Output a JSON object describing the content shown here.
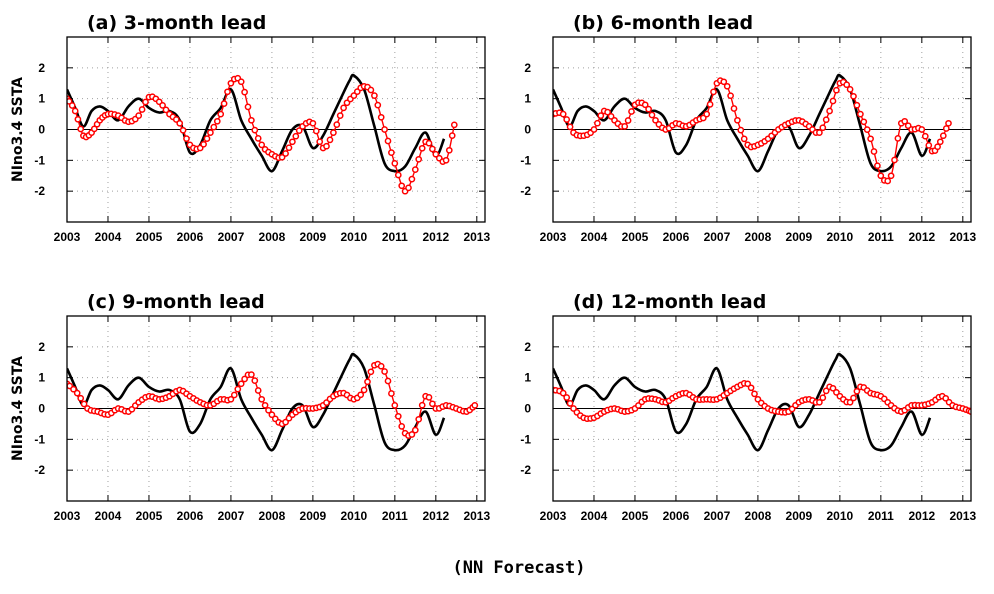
{
  "figure": {
    "footer": "(NN Forecast)"
  },
  "colors": {
    "observed": "#000000",
    "forecast": "#ff0000",
    "grid": "#a0a0a0"
  },
  "chart_data": [
    {
      "type": "line",
      "title": "(a) 3-month lead",
      "ylabel": "NIno3.4 SSTA",
      "xlim": [
        2003,
        2013.2
      ],
      "ylim": [
        -3,
        3
      ],
      "xticks": [
        "2003",
        "2004",
        "2005",
        "2006",
        "2007",
        "2008",
        "2009",
        "2010",
        "2011",
        "2012",
        "2013"
      ],
      "yticks": [
        "2",
        "1",
        "0",
        "-1",
        "-2"
      ],
      "grid": true,
      "series": [
        {
          "style": "observed",
          "x": [
            2003,
            2003.2,
            2003.4,
            2003.6,
            2003.8,
            2004,
            2004.25,
            2004.5,
            2004.75,
            2005,
            2005.25,
            2005.5,
            2005.75,
            2006,
            2006.25,
            2006.5,
            2006.75,
            2007,
            2007.25,
            2007.5,
            2007.75,
            2008,
            2008.25,
            2008.5,
            2008.75,
            2009,
            2009.25,
            2009.5,
            2009.75,
            2009.9,
            2010,
            2010.25,
            2010.5,
            2010.75,
            2011,
            2011.25,
            2011.5,
            2011.75,
            2012,
            2012.2
          ],
          "y": [
            1.3,
            0.7,
            0.1,
            0.6,
            0.75,
            0.6,
            0.3,
            0.75,
            1.0,
            0.7,
            0.55,
            0.6,
            0.3,
            -0.75,
            -0.5,
            0.3,
            0.7,
            1.3,
            0.3,
            -0.3,
            -0.85,
            -1.35,
            -0.7,
            0.0,
            0.1,
            -0.6,
            -0.2,
            0.5,
            1.2,
            1.6,
            1.75,
            1.3,
            0.1,
            -1.1,
            -1.35,
            -1.2,
            -0.6,
            -0.1,
            -0.85,
            -0.3
          ]
        },
        {
          "style": "forecast",
          "x": [
            2003,
            2003.2,
            2003.4,
            2003.6,
            2003.8,
            2004,
            2004.25,
            2004.5,
            2004.75,
            2005,
            2005.25,
            2005.5,
            2005.75,
            2006,
            2006.25,
            2006.5,
            2006.75,
            2007,
            2007.25,
            2007.5,
            2007.75,
            2008,
            2008.25,
            2008.5,
            2008.75,
            2009,
            2009.25,
            2009.5,
            2009.75,
            2010,
            2010.25,
            2010.5,
            2010.75,
            2011,
            2011.25,
            2011.5,
            2011.75,
            2012,
            2012.25,
            2012.45
          ],
          "y": [
            1.0,
            0.6,
            -0.2,
            -0.1,
            0.3,
            0.5,
            0.45,
            0.25,
            0.45,
            1.05,
            0.9,
            0.5,
            0.2,
            -0.5,
            -0.6,
            -0.1,
            0.5,
            1.5,
            1.55,
            0.3,
            -0.5,
            -0.8,
            -0.9,
            -0.4,
            0.1,
            0.2,
            -0.6,
            -0.1,
            0.7,
            1.1,
            1.4,
            1.1,
            0.0,
            -1.1,
            -2.0,
            -1.3,
            -0.4,
            -0.8,
            -1.0,
            0.15
          ]
        }
      ]
    },
    {
      "type": "line",
      "title": "(b) 6-month lead",
      "ylabel": "",
      "xlim": [
        2003,
        2013.2
      ],
      "ylim": [
        -3,
        3
      ],
      "xticks": [
        "2003",
        "2004",
        "2005",
        "2006",
        "2007",
        "2008",
        "2009",
        "2010",
        "2011",
        "2012",
        "2013"
      ],
      "yticks": [
        "2",
        "1",
        "0",
        "-1",
        "-2"
      ],
      "grid": true,
      "series": [
        {
          "style": "observed",
          "x": [
            2003,
            2003.2,
            2003.4,
            2003.6,
            2003.8,
            2004,
            2004.25,
            2004.5,
            2004.75,
            2005,
            2005.25,
            2005.5,
            2005.75,
            2006,
            2006.25,
            2006.5,
            2006.75,
            2007,
            2007.25,
            2007.5,
            2007.75,
            2008,
            2008.25,
            2008.5,
            2008.75,
            2009,
            2009.25,
            2009.5,
            2009.75,
            2009.9,
            2010,
            2010.25,
            2010.5,
            2010.75,
            2011,
            2011.25,
            2011.5,
            2011.75,
            2012,
            2012.2
          ],
          "y": [
            1.3,
            0.7,
            0.1,
            0.6,
            0.75,
            0.6,
            0.3,
            0.75,
            1.0,
            0.7,
            0.55,
            0.6,
            0.3,
            -0.75,
            -0.5,
            0.3,
            0.7,
            1.3,
            0.3,
            -0.3,
            -0.85,
            -1.35,
            -0.7,
            0.0,
            0.1,
            -0.6,
            -0.2,
            0.5,
            1.2,
            1.6,
            1.75,
            1.3,
            0.1,
            -1.1,
            -1.35,
            -1.2,
            -0.6,
            -0.1,
            -0.85,
            -0.3
          ]
        },
        {
          "style": "forecast",
          "x": [
            2003,
            2003.25,
            2003.5,
            2003.75,
            2004,
            2004.25,
            2004.5,
            2004.75,
            2005,
            2005.25,
            2005.5,
            2005.75,
            2006,
            2006.25,
            2006.5,
            2006.75,
            2007,
            2007.25,
            2007.5,
            2007.75,
            2008,
            2008.25,
            2008.5,
            2008.75,
            2009,
            2009.25,
            2009.5,
            2009.75,
            2010,
            2010.25,
            2010.5,
            2010.75,
            2011,
            2011.25,
            2011.5,
            2011.75,
            2012,
            2012.25,
            2012.45,
            2012.65
          ],
          "y": [
            0.5,
            0.5,
            -0.1,
            -0.2,
            0.0,
            0.6,
            0.3,
            0.1,
            0.8,
            0.8,
            0.3,
            0.0,
            0.2,
            0.1,
            0.3,
            0.5,
            1.5,
            1.4,
            0.3,
            -0.5,
            -0.5,
            -0.3,
            0.0,
            0.2,
            0.3,
            0.1,
            -0.1,
            0.6,
            1.5,
            1.3,
            0.5,
            -0.3,
            -1.5,
            -1.5,
            0.2,
            0.0,
            0.0,
            -0.7,
            -0.4,
            0.2
          ]
        }
      ]
    },
    {
      "type": "line",
      "title": "(c) 9-month lead",
      "ylabel": "NIno3.4 SSTA",
      "xlim": [
        2003,
        2013.2
      ],
      "ylim": [
        -3,
        3
      ],
      "xticks": [
        "2003",
        "2004",
        "2005",
        "2006",
        "2007",
        "2008",
        "2009",
        "2010",
        "2011",
        "2012",
        "2013"
      ],
      "yticks": [
        "2",
        "1",
        "0",
        "-1",
        "-2"
      ],
      "grid": true,
      "series": [
        {
          "style": "observed",
          "x": [
            2003,
            2003.2,
            2003.4,
            2003.6,
            2003.8,
            2004,
            2004.25,
            2004.5,
            2004.75,
            2005,
            2005.25,
            2005.5,
            2005.75,
            2006,
            2006.25,
            2006.5,
            2006.75,
            2007,
            2007.25,
            2007.5,
            2007.75,
            2008,
            2008.25,
            2008.5,
            2008.75,
            2009,
            2009.25,
            2009.5,
            2009.75,
            2009.9,
            2010,
            2010.25,
            2010.5,
            2010.75,
            2011,
            2011.25,
            2011.5,
            2011.75,
            2012,
            2012.2
          ],
          "y": [
            1.3,
            0.7,
            0.1,
            0.6,
            0.75,
            0.6,
            0.3,
            0.75,
            1.0,
            0.7,
            0.55,
            0.6,
            0.3,
            -0.75,
            -0.5,
            0.3,
            0.7,
            1.3,
            0.3,
            -0.3,
            -0.85,
            -1.35,
            -0.7,
            0.0,
            0.1,
            -0.6,
            -0.2,
            0.5,
            1.2,
            1.6,
            1.75,
            1.3,
            0.1,
            -1.1,
            -1.35,
            -1.2,
            -0.6,
            -0.1,
            -0.85,
            -0.3
          ]
        },
        {
          "style": "forecast",
          "x": [
            2003,
            2003.25,
            2003.5,
            2003.75,
            2004,
            2004.25,
            2004.5,
            2004.75,
            2005,
            2005.25,
            2005.5,
            2005.75,
            2006,
            2006.25,
            2006.5,
            2006.75,
            2007,
            2007.25,
            2007.5,
            2007.75,
            2008,
            2008.25,
            2008.5,
            2008.75,
            2009,
            2009.25,
            2009.5,
            2009.75,
            2010,
            2010.25,
            2010.5,
            2010.75,
            2011,
            2011.25,
            2011.5,
            2011.75,
            2012,
            2012.25,
            2012.5,
            2012.75,
            2012.95
          ],
          "y": [
            0.8,
            0.5,
            0.0,
            -0.1,
            -0.2,
            0.0,
            -0.1,
            0.2,
            0.4,
            0.3,
            0.4,
            0.6,
            0.4,
            0.2,
            0.1,
            0.3,
            0.3,
            0.8,
            1.1,
            0.3,
            -0.2,
            -0.5,
            -0.2,
            0.0,
            0.0,
            0.1,
            0.4,
            0.5,
            0.3,
            0.6,
            1.4,
            1.2,
            0.1,
            -0.8,
            -0.7,
            0.4,
            0.0,
            0.1,
            0.0,
            -0.1,
            0.1
          ]
        }
      ]
    },
    {
      "type": "line",
      "title": "(d) 12-month lead",
      "ylabel": "",
      "xlim": [
        2003,
        2013.2
      ],
      "ylim": [
        -3,
        3
      ],
      "xticks": [
        "2003",
        "2004",
        "2005",
        "2006",
        "2007",
        "2008",
        "2009",
        "2010",
        "2011",
        "2012",
        "2013"
      ],
      "yticks": [
        "2",
        "1",
        "0",
        "-1",
        "-2"
      ],
      "grid": true,
      "series": [
        {
          "style": "observed",
          "x": [
            2003,
            2003.2,
            2003.4,
            2003.6,
            2003.8,
            2004,
            2004.25,
            2004.5,
            2004.75,
            2005,
            2005.25,
            2005.5,
            2005.75,
            2006,
            2006.25,
            2006.5,
            2006.75,
            2007,
            2007.25,
            2007.5,
            2007.75,
            2008,
            2008.25,
            2008.5,
            2008.75,
            2009,
            2009.25,
            2009.5,
            2009.75,
            2009.9,
            2010,
            2010.25,
            2010.5,
            2010.75,
            2011,
            2011.25,
            2011.5,
            2011.75,
            2012,
            2012.2
          ],
          "y": [
            1.3,
            0.7,
            0.1,
            0.6,
            0.75,
            0.6,
            0.3,
            0.75,
            1.0,
            0.7,
            0.55,
            0.6,
            0.3,
            -0.75,
            -0.5,
            0.3,
            0.7,
            1.3,
            0.3,
            -0.3,
            -0.85,
            -1.35,
            -0.7,
            0.0,
            0.1,
            -0.6,
            -0.2,
            0.5,
            1.2,
            1.6,
            1.75,
            1.3,
            0.1,
            -1.1,
            -1.35,
            -1.2,
            -0.6,
            -0.1,
            -0.85,
            -0.3
          ]
        },
        {
          "style": "forecast",
          "x": [
            2003,
            2003.25,
            2003.5,
            2003.75,
            2004,
            2004.25,
            2004.5,
            2004.75,
            2005,
            2005.25,
            2005.5,
            2005.75,
            2006,
            2006.25,
            2006.5,
            2006.75,
            2007,
            2007.25,
            2007.5,
            2007.75,
            2008,
            2008.25,
            2008.5,
            2008.75,
            2009,
            2009.25,
            2009.5,
            2009.75,
            2010,
            2010.25,
            2010.5,
            2010.75,
            2011,
            2011.25,
            2011.5,
            2011.75,
            2012,
            2012.25,
            2012.5,
            2012.75,
            2013,
            2013.2
          ],
          "y": [
            0.6,
            0.5,
            0.0,
            -0.3,
            -0.3,
            -0.1,
            0.0,
            -0.1,
            0.0,
            0.3,
            0.3,
            0.2,
            0.4,
            0.5,
            0.3,
            0.3,
            0.3,
            0.5,
            0.7,
            0.8,
            0.3,
            0.0,
            -0.1,
            -0.1,
            0.2,
            0.3,
            0.2,
            0.7,
            0.4,
            0.2,
            0.7,
            0.5,
            0.4,
            0.1,
            -0.1,
            0.1,
            0.1,
            0.2,
            0.4,
            0.1,
            0.0,
            -0.1
          ]
        }
      ]
    }
  ]
}
